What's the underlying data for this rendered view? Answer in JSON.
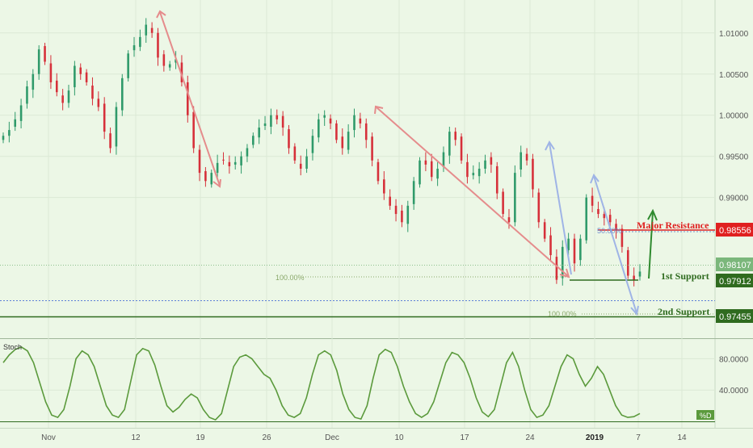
{
  "chart_data": [
    {
      "type": "candlestick",
      "title": "",
      "xlabel": "",
      "ylabel": "",
      "ylim": [
        0.973,
        1.014
      ],
      "x_ticks": [
        "Nov",
        "12",
        "19",
        "26",
        "Dec",
        "10",
        "17",
        "24",
        "2019",
        "7",
        "14"
      ],
      "y_ticks": [
        "1.01000",
        "1.00500",
        "1.00000",
        "0.99500",
        "0.99000"
      ],
      "price_labels": [
        {
          "name": "last",
          "value": "0.98107",
          "color": "#7bb77b"
        },
        {
          "name": "major-resistance",
          "value": "0.98556",
          "color": "#e02020"
        },
        {
          "name": "first-support",
          "value": "0.97912",
          "color": "#2f6b1f"
        },
        {
          "name": "second-support",
          "value": "0.97455",
          "color": "#2f6b1f"
        }
      ],
      "series": [
        {
          "values": [
            0.9975,
            0.9982,
            0.9995,
            1.0012,
            1.0035,
            1.005,
            1.008,
            1.0065,
            1.004,
            1.0028,
            1.0015,
            1.003,
            1.006,
            1.005,
            1.004,
            1.002,
            1.001,
            0.998,
            0.996,
            1.001,
            1.0045,
            1.0075,
            1.0085,
            1.0095,
            1.011,
            1.01,
            1.007,
            1.006,
            1.0062,
            1.0068,
            1.004,
            1.0,
            0.996,
            0.993,
            0.992,
            0.993,
            0.9942,
            0.9945,
            0.9938,
            0.9943,
            0.995,
            0.996,
            0.9975,
            0.9985,
            0.999,
            1.0,
            0.9995,
            0.9985,
            0.996,
            0.9945,
            0.9935,
            0.995,
            0.9975,
            0.9995,
            1.0,
            0.999,
            0.997,
            0.996,
            0.998,
            1.0,
            0.999,
            0.997,
            0.9945,
            0.992,
            0.9905,
            0.989,
            0.988,
            0.987,
            0.989,
            0.992,
            0.9945,
            0.994,
            0.9925,
            0.9935,
            0.9955,
            0.998,
            0.997,
            0.9945,
            0.9925,
            0.993,
            0.9935,
            0.9945,
            0.994,
            0.9905,
            0.988,
            0.987,
            0.993,
            0.9955,
            0.9945,
            0.991,
            0.987,
            0.985,
            0.983,
            0.98,
            0.984,
            0.985,
            0.982,
            0.985,
            0.99,
            0.989,
            0.988,
            0.9875,
            0.987,
            0.986,
            0.984,
            0.9805,
            0.98,
            0.981
          ],
          "color": "#d6303a",
          "up_color": "#2f9a6a"
        }
      ],
      "annotations": [
        {
          "name": "major-resistance-label",
          "text": "Major Resistance",
          "color": "#e02020"
        },
        {
          "name": "first-support-label",
          "text": "1st Support",
          "color": "#2f6b1f"
        },
        {
          "name": "second-support-label",
          "text": "2nd Support",
          "color": "#2f6b1f"
        },
        {
          "name": "fib-50-label",
          "text": "50.00%",
          "color": "#6f8fcf"
        },
        {
          "name": "fib-100-label-a",
          "text": "100.00%",
          "color": "#8aa86a"
        },
        {
          "name": "fib-100-label-b",
          "text": "100.00%",
          "color": "#8aa86a"
        }
      ]
    },
    {
      "type": "line",
      "title": "",
      "indicator": "Stoch",
      "ylim": [
        0,
        100
      ],
      "y_ticks": [
        "80.0000",
        "40.0000"
      ],
      "series": [
        {
          "name": "%D",
          "color": "#5b9a3c",
          "values": [
            75,
            85,
            92,
            95,
            90,
            75,
            50,
            25,
            8,
            5,
            15,
            45,
            80,
            90,
            85,
            70,
            45,
            20,
            8,
            5,
            15,
            50,
            85,
            93,
            90,
            72,
            45,
            20,
            12,
            18,
            28,
            35,
            30,
            15,
            5,
            2,
            10,
            40,
            70,
            82,
            85,
            80,
            70,
            60,
            55,
            40,
            20,
            8,
            5,
            10,
            30,
            60,
            85,
            90,
            85,
            65,
            35,
            15,
            5,
            3,
            20,
            55,
            85,
            92,
            88,
            70,
            45,
            25,
            10,
            5,
            10,
            25,
            50,
            75,
            88,
            85,
            75,
            55,
            30,
            12,
            6,
            15,
            45,
            75,
            88,
            70,
            40,
            15,
            5,
            8,
            20,
            45,
            70,
            85,
            80,
            60,
            45,
            55,
            70,
            60,
            40,
            20,
            8,
            5,
            6,
            10
          ]
        }
      ]
    }
  ]
}
